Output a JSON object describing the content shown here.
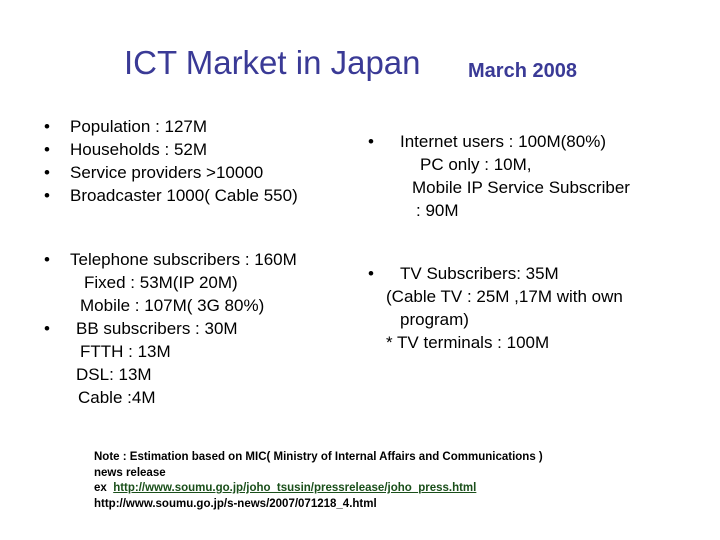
{
  "title": {
    "main": "ICT Market in Japan",
    "date": "March 2008"
  },
  "left_top": [
    "Population : 127M",
    "Households : 52M",
    "Service providers  >10000",
    "Broadcaster 1000( Cable 550)"
  ],
  "left_bottom": {
    "line1": "Telephone subscribers : 160M",
    "line2": "Fixed : 53M(IP 20M)",
    "line3": "Mobile  : 107M( 3G 80%)",
    "line4": "BB subscribers : 30M",
    "line5": "FTTH : 13M",
    "line6": "DSL: 13M",
    "line7": "Cable :4M"
  },
  "right_top": {
    "line1": "Internet users : 100M(80%)",
    "line2": "PC only : 10M,",
    "line3": "Mobile IP Service Subscriber",
    "line4": ": 90M"
  },
  "right_bottom": {
    "line1": "TV Subscribers: 35M",
    "line2": "(Cable TV : 25M ,17M with own",
    "line3": "program)",
    "line4": "* TV terminals : 100M"
  },
  "bullet_char": "•",
  "note": {
    "line1": "Note : Estimation based on MIC( Ministry of Internal Affairs and Communications )",
    "line2": "news release",
    "line3_prefix": "ex",
    "line3_link": "http://www.soumu.go.jp/joho_tsusin/pressrelease/joho_press.html",
    "line4": "http://www.soumu.go.jp/s-news/2007/071218_4.html"
  },
  "colors": {
    "title": "#3a3a96",
    "text": "#000000",
    "link": "#1a4f1a",
    "background": "#ffffff"
  }
}
